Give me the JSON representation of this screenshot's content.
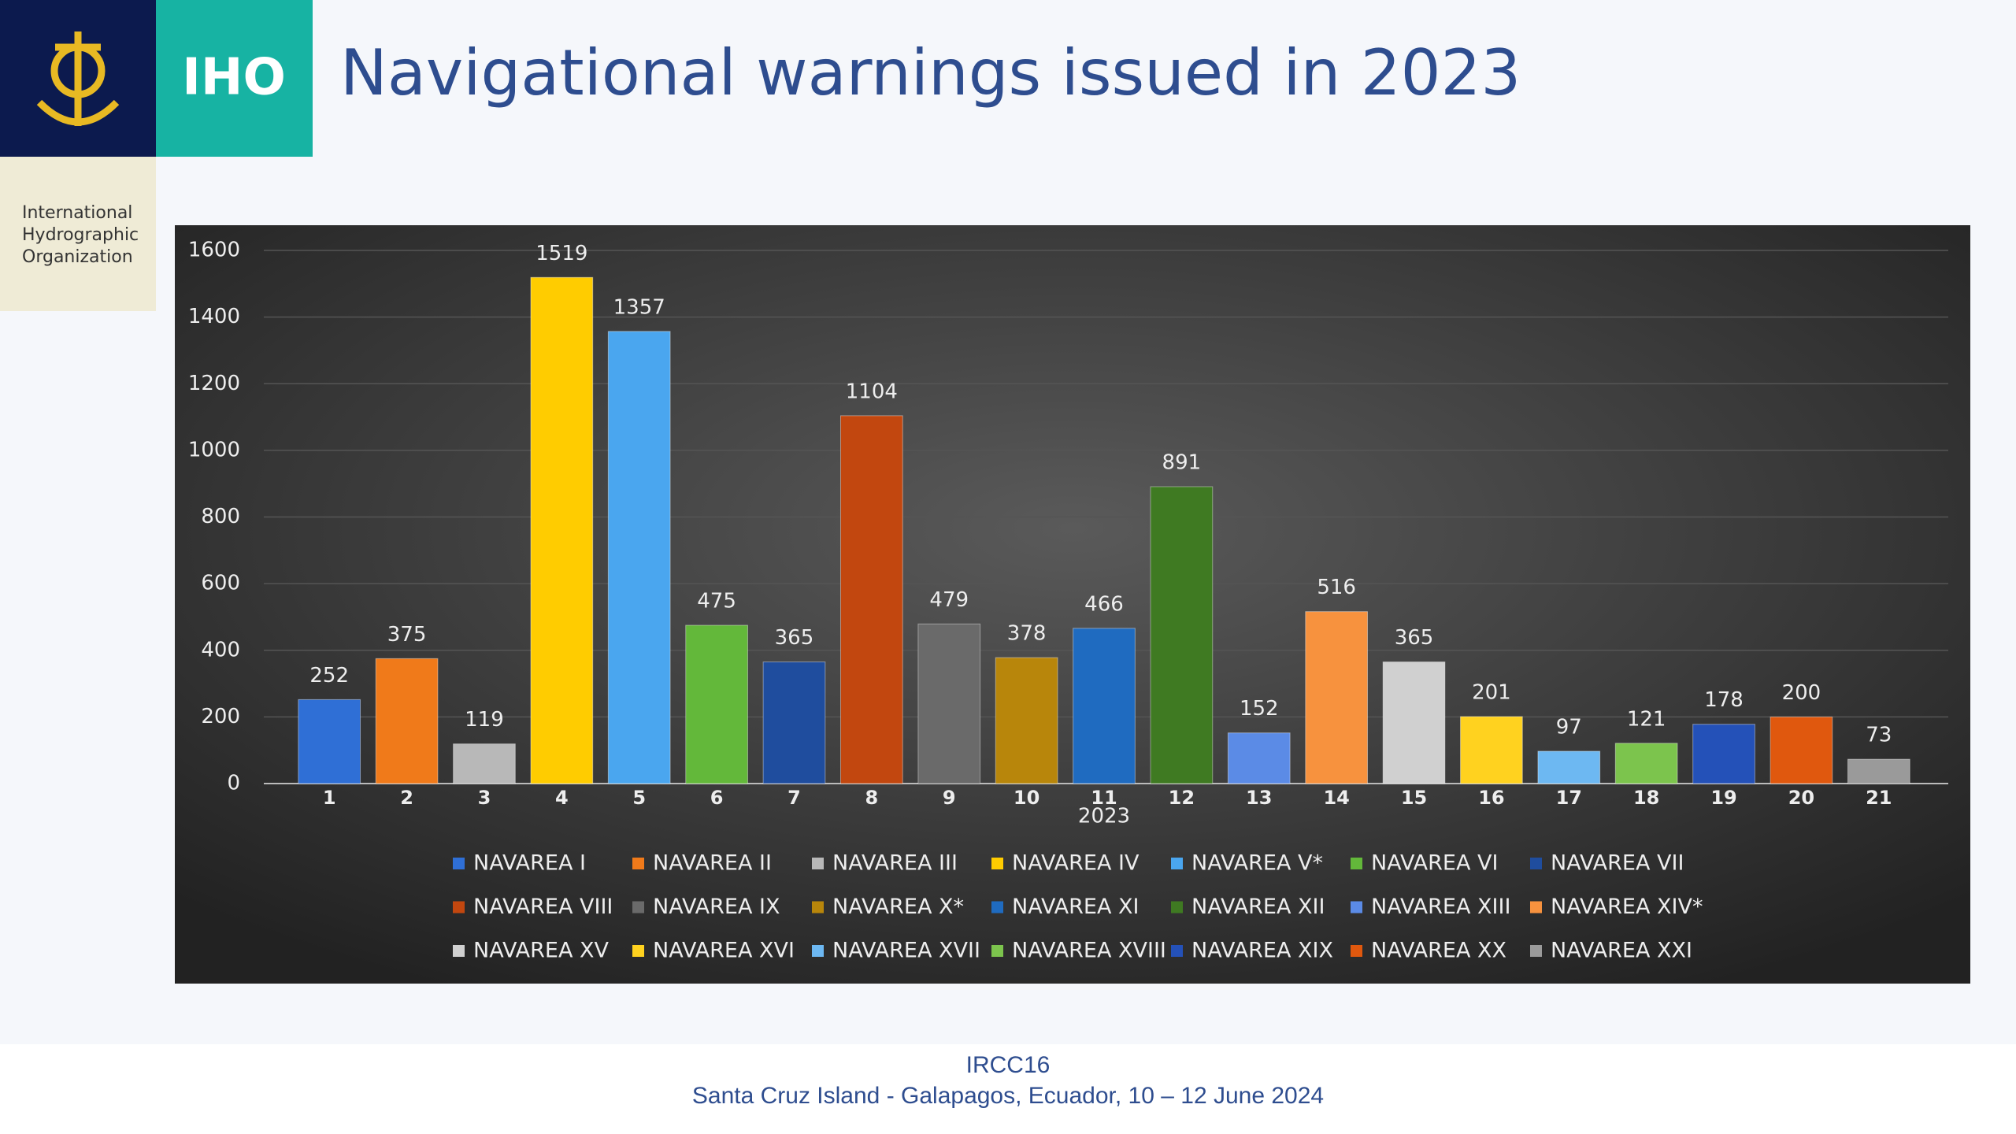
{
  "header": {
    "logo_text": "IHO",
    "org_name": [
      "International",
      "Hydrographic",
      "Organization"
    ]
  },
  "chart_data": {
    "type": "bar",
    "title": "Navigational warnings issued in 2023",
    "x_label": "2023",
    "categories": [
      "1",
      "2",
      "3",
      "4",
      "5",
      "6",
      "7",
      "8",
      "9",
      "10",
      "11",
      "12",
      "13",
      "14",
      "15",
      "16",
      "17",
      "18",
      "19",
      "20",
      "21"
    ],
    "values": [
      252,
      375,
      119,
      1519,
      1357,
      475,
      365,
      1104,
      479,
      378,
      466,
      891,
      152,
      516,
      365,
      201,
      97,
      121,
      178,
      200,
      73
    ],
    "colors": [
      "#2f6fd6",
      "#f07a1a",
      "#b8b8b8",
      "#ffcc00",
      "#4aa6ef",
      "#63b83a",
      "#1f4d9e",
      "#c2470f",
      "#6a6a6a",
      "#b8860b",
      "#1f6bc0",
      "#3f7a22",
      "#5b8be6",
      "#f7923e",
      "#d0d0d0",
      "#ffd21f",
      "#6db8f2",
      "#7cc44d",
      "#2451b8",
      "#e0580e",
      "#9a9a9a"
    ],
    "legend": [
      "NAVAREA I",
      "NAVAREA II",
      "NAVAREA III",
      "NAVAREA IV",
      "NAVAREA V*",
      "NAVAREA VI",
      "NAVAREA VII",
      "NAVAREA VIII",
      "NAVAREA IX",
      "NAVAREA X*",
      "NAVAREA XI",
      "NAVAREA XII",
      "NAVAREA XIII",
      "NAVAREA XIV*",
      "NAVAREA XV",
      "NAVAREA XVI",
      "NAVAREA XVII",
      "NAVAREA XVIII",
      "NAVAREA XIX",
      "NAVAREA XX",
      "NAVAREA XXI"
    ],
    "ylim": [
      0,
      1600
    ],
    "yticks": [
      0,
      200,
      400,
      600,
      800,
      1000,
      1200,
      1400,
      1600
    ],
    "grid": true
  },
  "footer": {
    "line1": "IRCC16",
    "line2": "Santa Cruz Island - Galapagos, Ecuador, 10 – 12 June 2024"
  }
}
